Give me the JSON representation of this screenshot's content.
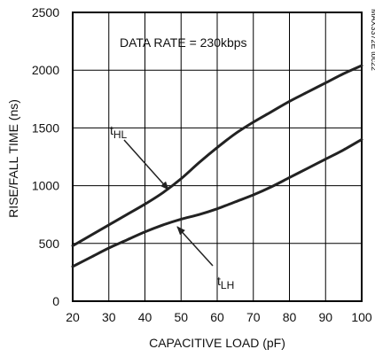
{
  "chart_data": {
    "type": "line",
    "xlabel": "CAPACITIVE LOAD (pF)",
    "ylabel": "RISE/FALL TIME (ns)",
    "xlim": [
      20,
      100
    ],
    "ylim": [
      0,
      2500
    ],
    "xticks": [
      20,
      30,
      40,
      50,
      60,
      70,
      80,
      90,
      100
    ],
    "yticks": [
      0,
      500,
      1000,
      1500,
      2000,
      2500
    ],
    "grid": true,
    "annotation": "DATA RATE = 230kbps",
    "figure_id": "MAX3372E toc22",
    "series": [
      {
        "name": "tHL",
        "label_main": "t",
        "label_sub": "HL",
        "x": [
          20,
          25,
          30,
          35,
          40,
          45,
          50,
          55,
          60,
          65,
          70,
          75,
          80,
          85,
          90,
          95,
          100
        ],
        "y": [
          480,
          570,
          660,
          750,
          840,
          940,
          1060,
          1200,
          1330,
          1450,
          1550,
          1640,
          1730,
          1810,
          1890,
          1970,
          2040
        ]
      },
      {
        "name": "tLH",
        "label_main": "t",
        "label_sub": "LH",
        "x": [
          20,
          25,
          30,
          35,
          40,
          45,
          50,
          55,
          60,
          65,
          70,
          75,
          80,
          85,
          90,
          95,
          100
        ],
        "y": [
          300,
          380,
          460,
          530,
          600,
          660,
          710,
          750,
          800,
          860,
          920,
          990,
          1070,
          1150,
          1230,
          1310,
          1400
        ]
      }
    ]
  },
  "colors": {
    "line": "#222222",
    "grid": "#000000",
    "frame": "#000000"
  }
}
